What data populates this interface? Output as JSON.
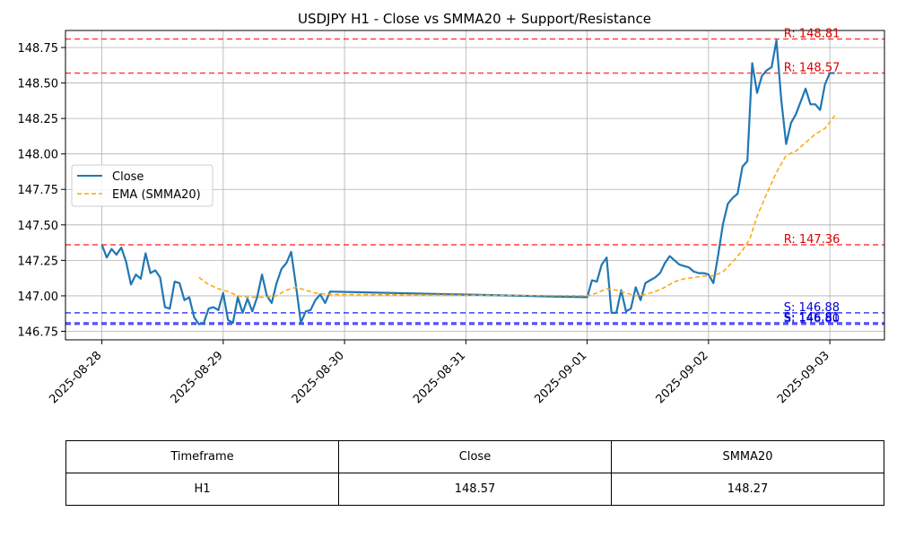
{
  "chart_data": {
    "type": "line",
    "title": "USDJPY H1 - Close vs SMMA20 + Support/Resistance",
    "x_ticks": [
      "2025-08-28",
      "2025-08-29",
      "2025-08-30",
      "2025-08-31",
      "2025-09-01",
      "2025-09-02",
      "2025-09-03"
    ],
    "y_ticks": [
      "146.75",
      "147.00",
      "147.25",
      "147.50",
      "147.75",
      "148.00",
      "148.25",
      "148.50",
      "148.75"
    ],
    "xlim": [
      -0.3,
      6.45
    ],
    "ylim": [
      146.69,
      148.87
    ],
    "grid": true,
    "legend_position": "center-left",
    "series": [
      {
        "name": "Close",
        "color": "#1f77b4",
        "style": "solid",
        "points": [
          [
            0.0,
            147.36
          ],
          [
            0.04,
            147.27
          ],
          [
            0.08,
            147.33
          ],
          [
            0.12,
            147.29
          ],
          [
            0.16,
            147.34
          ],
          [
            0.2,
            147.24
          ],
          [
            0.24,
            147.08
          ],
          [
            0.28,
            147.15
          ],
          [
            0.32,
            147.12
          ],
          [
            0.36,
            147.3
          ],
          [
            0.4,
            147.16
          ],
          [
            0.44,
            147.18
          ],
          [
            0.48,
            147.13
          ],
          [
            0.52,
            146.92
          ],
          [
            0.56,
            146.91
          ],
          [
            0.6,
            147.1
          ],
          [
            0.64,
            147.09
          ],
          [
            0.68,
            146.97
          ],
          [
            0.72,
            146.99
          ],
          [
            0.76,
            146.85
          ],
          [
            0.8,
            146.8
          ],
          [
            0.84,
            146.81
          ],
          [
            0.88,
            146.91
          ],
          [
            0.92,
            146.92
          ],
          [
            0.96,
            146.9
          ],
          [
            1.0,
            147.02
          ],
          [
            1.04,
            146.83
          ],
          [
            1.08,
            146.81
          ],
          [
            1.12,
            146.99
          ],
          [
            1.16,
            146.88
          ],
          [
            1.2,
            146.98
          ],
          [
            1.24,
            146.89
          ],
          [
            1.28,
            146.99
          ],
          [
            1.32,
            147.15
          ],
          [
            1.36,
            147.0
          ],
          [
            1.4,
            146.95
          ],
          [
            1.44,
            147.09
          ],
          [
            1.48,
            147.19
          ],
          [
            1.52,
            147.23
          ],
          [
            1.56,
            147.31
          ],
          [
            1.6,
            147.07
          ],
          [
            1.64,
            146.81
          ],
          [
            1.68,
            146.89
          ],
          [
            1.72,
            146.9
          ],
          [
            1.76,
            146.97
          ],
          [
            1.8,
            147.01
          ],
          [
            1.84,
            146.95
          ],
          [
            1.88,
            147.03
          ],
          [
            4.0,
            146.99
          ],
          [
            4.04,
            147.11
          ],
          [
            4.08,
            147.1
          ],
          [
            4.12,
            147.22
          ],
          [
            4.16,
            147.27
          ],
          [
            4.2,
            146.88
          ],
          [
            4.24,
            146.88
          ],
          [
            4.28,
            147.04
          ],
          [
            4.32,
            146.89
          ],
          [
            4.36,
            146.91
          ],
          [
            4.4,
            147.06
          ],
          [
            4.44,
            146.97
          ],
          [
            4.48,
            147.09
          ],
          [
            4.52,
            147.11
          ],
          [
            4.56,
            147.13
          ],
          [
            4.6,
            147.16
          ],
          [
            4.64,
            147.23
          ],
          [
            4.68,
            147.28
          ],
          [
            4.72,
            147.25
          ],
          [
            4.76,
            147.22
          ],
          [
            4.8,
            147.21
          ],
          [
            4.84,
            147.2
          ],
          [
            4.88,
            147.17
          ],
          [
            4.92,
            147.16
          ],
          [
            4.96,
            147.16
          ],
          [
            5.0,
            147.15
          ],
          [
            5.04,
            147.09
          ],
          [
            5.08,
            147.29
          ],
          [
            5.12,
            147.51
          ],
          [
            5.16,
            147.65
          ],
          [
            5.2,
            147.69
          ],
          [
            5.24,
            147.72
          ],
          [
            5.28,
            147.91
          ],
          [
            5.32,
            147.95
          ],
          [
            5.36,
            148.64
          ],
          [
            5.4,
            148.43
          ],
          [
            5.44,
            148.55
          ],
          [
            5.48,
            148.59
          ],
          [
            5.52,
            148.61
          ],
          [
            5.56,
            148.8
          ],
          [
            5.6,
            148.38
          ],
          [
            5.64,
            148.07
          ],
          [
            5.68,
            148.22
          ],
          [
            5.72,
            148.28
          ],
          [
            5.76,
            148.37
          ],
          [
            5.8,
            148.46
          ],
          [
            5.84,
            148.35
          ],
          [
            5.88,
            148.35
          ],
          [
            5.92,
            148.31
          ],
          [
            5.96,
            148.49
          ],
          [
            6.0,
            148.57
          ],
          [
            6.04,
            148.57
          ]
        ]
      },
      {
        "name": "EMA (SMMA20)",
        "color": "#ffa500",
        "style": "dashed",
        "points": [
          [
            0.8,
            147.13
          ],
          [
            0.88,
            147.08
          ],
          [
            0.96,
            147.05
          ],
          [
            1.04,
            147.03
          ],
          [
            1.12,
            147.0
          ],
          [
            1.2,
            146.99
          ],
          [
            1.28,
            146.99
          ],
          [
            1.36,
            146.99
          ],
          [
            1.44,
            147.0
          ],
          [
            1.52,
            147.04
          ],
          [
            1.6,
            147.06
          ],
          [
            1.68,
            147.04
          ],
          [
            1.76,
            147.02
          ],
          [
            1.88,
            147.01
          ],
          [
            4.0,
            147.0
          ],
          [
            4.08,
            147.02
          ],
          [
            4.16,
            147.05
          ],
          [
            4.24,
            147.04
          ],
          [
            4.32,
            147.02
          ],
          [
            4.4,
            147.0
          ],
          [
            4.48,
            147.01
          ],
          [
            4.56,
            147.03
          ],
          [
            4.64,
            147.06
          ],
          [
            4.72,
            147.1
          ],
          [
            4.8,
            147.12
          ],
          [
            4.88,
            147.13
          ],
          [
            4.96,
            147.14
          ],
          [
            5.04,
            147.14
          ],
          [
            5.12,
            147.17
          ],
          [
            5.2,
            147.24
          ],
          [
            5.28,
            147.32
          ],
          [
            5.34,
            147.4
          ],
          [
            5.4,
            147.56
          ],
          [
            5.48,
            147.72
          ],
          [
            5.56,
            147.87
          ],
          [
            5.64,
            147.99
          ],
          [
            5.72,
            148.02
          ],
          [
            5.8,
            148.08
          ],
          [
            5.88,
            148.14
          ],
          [
            5.96,
            148.18
          ],
          [
            6.04,
            148.27
          ]
        ]
      }
    ],
    "levels": [
      {
        "label": "R: 148.81",
        "value": 148.81,
        "color": "#ff0000",
        "text_color": "#dd0000",
        "label_x": 5.62
      },
      {
        "label": "R: 148.57",
        "value": 148.57,
        "color": "#ff0000",
        "text_color": "#dd0000",
        "label_x": 5.62
      },
      {
        "label": "R: 147.36",
        "value": 147.36,
        "color": "#ff0000",
        "text_color": "#dd0000",
        "label_x": 5.62
      },
      {
        "label": "S: 146.88",
        "value": 146.88,
        "color": "#0000ff",
        "text_color": "#0000dd",
        "label_x": 5.62
      },
      {
        "label": "S: 146.81",
        "value": 146.81,
        "color": "#0000ff",
        "text_color": "#0000dd",
        "label_x": 5.62
      },
      {
        "label": "S: 146.80",
        "value": 146.8,
        "color": "#0000ff",
        "text_color": "#0000dd",
        "label_x": 5.62
      }
    ]
  },
  "table": {
    "headers": [
      "Timeframe",
      "Close",
      "SMMA20"
    ],
    "row": [
      "H1",
      "148.57",
      "148.27"
    ]
  }
}
